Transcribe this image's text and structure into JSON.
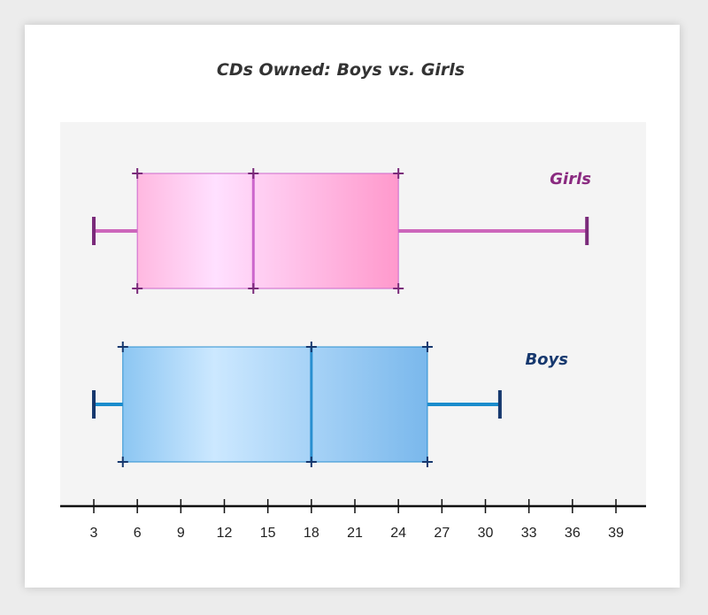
{
  "chart_data": {
    "type": "boxplot",
    "title": "CDs Owned: Boys vs. Girls",
    "xlabel": "",
    "ylabel": "",
    "xlim": [
      0,
      40.5
    ],
    "ticks": [
      3,
      6,
      9,
      12,
      15,
      18,
      21,
      24,
      27,
      30,
      33,
      36,
      39
    ],
    "series": [
      {
        "name": "Girls",
        "min": 3,
        "q1": 6,
        "median": 14,
        "q3": 24,
        "max": 37,
        "fill_light": "#ffe0ff",
        "fill_dark": "#ff99cc",
        "stroke": "#cc66cc",
        "whisker_color": "#cc66bb",
        "cap_color": "#7a2a7a",
        "label_color": "#8a2a80"
      },
      {
        "name": "Boys",
        "min": 3,
        "q1": 5,
        "median": 18,
        "q3": 26,
        "max": 31,
        "fill_light": "#cce8ff",
        "fill_dark": "#7ab8ec",
        "stroke": "#2a8fd0",
        "whisker_color": "#1a8ccc",
        "cap_color": "#16386e",
        "label_color": "#16386e"
      }
    ],
    "plot_background": "#f4f4f4"
  }
}
